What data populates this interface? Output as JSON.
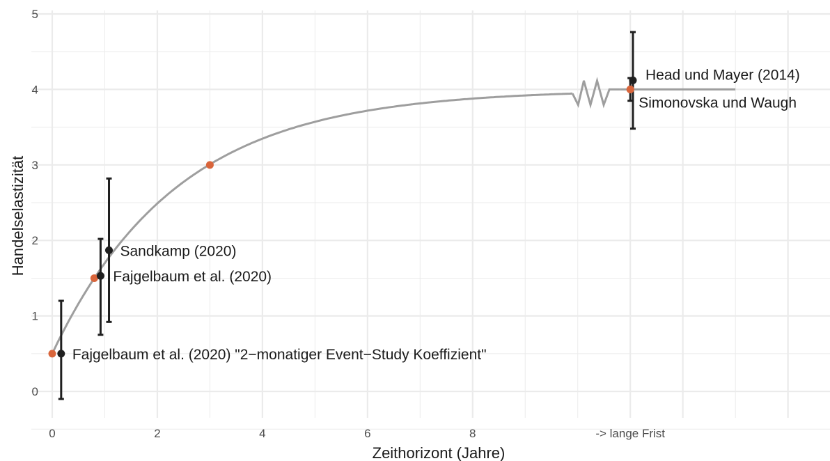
{
  "chart_data": {
    "type": "scatter",
    "xlabel": "Zeithorizont (Jahre)",
    "ylabel": "Handelselastizität",
    "xlim": [
      0,
      14.8
    ],
    "ylim": [
      -0.35,
      5
    ],
    "x_ticks": [
      {
        "value": 0,
        "label": "0"
      },
      {
        "value": 2,
        "label": "2"
      },
      {
        "value": 4,
        "label": "4"
      },
      {
        "value": 6,
        "label": "6"
      },
      {
        "value": 8,
        "label": "8"
      },
      {
        "value": 11,
        "label": "-> lange Frist"
      }
    ],
    "y_ticks": [
      0,
      1,
      2,
      3,
      4,
      5
    ],
    "grid": true,
    "colors": {
      "estimate": "#1f1f1f",
      "model_point": "#d9653b",
      "curve": "#9e9e9e",
      "grid": "#ebebeb"
    },
    "estimates": [
      {
        "x": 0.17,
        "y": 0.5,
        "ymin": -0.1,
        "ymax": 1.2,
        "label": "Fajgelbaum et al. (2020) \"2−monatiger Event−Study Koeffizient\""
      },
      {
        "x": 0.92,
        "y": 1.53,
        "ymin": 0.75,
        "ymax": 2.02,
        "label": "Fajgelbaum et al. (2020)"
      },
      {
        "x": 1.08,
        "y": 1.87,
        "ymin": 0.92,
        "ymax": 2.82,
        "label": "Sandkamp (2020)"
      },
      {
        "x": 11.05,
        "y": 4.12,
        "ymin": 3.48,
        "ymax": 4.76,
        "label": "Head und Mayer (2014)"
      },
      {
        "x": 11.0,
        "y": 4.0,
        "ymin": 3.85,
        "ymax": 4.15,
        "label": "Simonovska und Waugh"
      }
    ],
    "model_points": [
      {
        "x": 0.0,
        "y": 0.5
      },
      {
        "x": 0.8,
        "y": 1.5
      },
      {
        "x": 3.0,
        "y": 3.0
      },
      {
        "x": 11.0,
        "y": 4.0
      }
    ],
    "curve": {
      "asymptote": 4.0,
      "x_break_start": 9.9,
      "x_break_end": 10.8,
      "x_end": 13.0
    }
  }
}
